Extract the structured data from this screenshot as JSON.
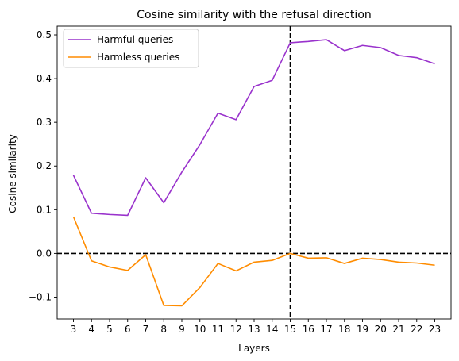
{
  "chart_data": {
    "type": "line",
    "title": "Cosine similarity with the refusal direction",
    "xlabel": "Layers",
    "ylabel": "Cosine similarity",
    "x": [
      3,
      4,
      5,
      6,
      7,
      8,
      9,
      10,
      11,
      12,
      13,
      14,
      15,
      16,
      17,
      18,
      19,
      20,
      21,
      22,
      23
    ],
    "xlim": [
      2.1,
      23.9
    ],
    "ylim": [
      -0.15,
      0.52
    ],
    "yticks": [
      "−0.1",
      "0.0",
      "0.1",
      "0.2",
      "0.3",
      "0.4",
      "0.5"
    ],
    "ytick_values": [
      -0.1,
      0.0,
      0.1,
      0.2,
      0.3,
      0.4,
      0.5
    ],
    "grid": false,
    "legend_position": "upper-left",
    "reference_lines": {
      "vertical_x": 15,
      "horizontal_y": 0.0,
      "style": "dashed",
      "color": "#000000"
    },
    "series": [
      {
        "name": "Harmful queries",
        "color": "#9932cc",
        "values": [
          0.179,
          0.092,
          0.089,
          0.087,
          0.173,
          0.116,
          0.186,
          0.249,
          0.321,
          0.306,
          0.382,
          0.396,
          0.482,
          0.485,
          0.489,
          0.464,
          0.476,
          0.471,
          0.453,
          0.448,
          0.434
        ]
      },
      {
        "name": "Harmless queries",
        "color": "#ff8c00",
        "values": [
          0.084,
          -0.017,
          -0.031,
          -0.039,
          -0.003,
          -0.119,
          -0.12,
          -0.078,
          -0.023,
          -0.04,
          -0.02,
          -0.016,
          0.0,
          -0.011,
          -0.01,
          -0.023,
          -0.011,
          -0.014,
          -0.02,
          -0.022,
          -0.027
        ]
      }
    ]
  }
}
